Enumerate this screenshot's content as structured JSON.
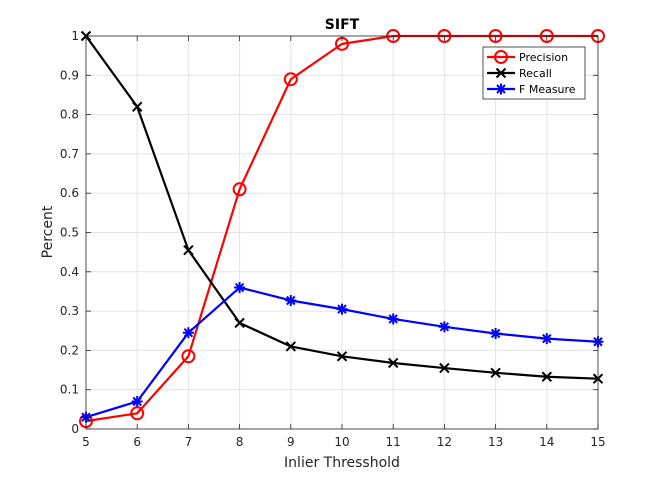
{
  "chart_data": {
    "type": "line",
    "title": "SIFT",
    "xlabel": "Inlier Thresshold",
    "ylabel": "Percent",
    "x": [
      5,
      6,
      7,
      8,
      9,
      10,
      11,
      12,
      13,
      14,
      15
    ],
    "xlim": [
      5,
      15
    ],
    "ylim": [
      0,
      1
    ],
    "xticks": [
      5,
      6,
      7,
      8,
      9,
      10,
      11,
      12,
      13,
      14,
      15
    ],
    "yticks": [
      0,
      0.1,
      0.2,
      0.3,
      0.4,
      0.5,
      0.6,
      0.7,
      0.8,
      0.9,
      1
    ],
    "grid": true,
    "legend_position": "top-right",
    "series": [
      {
        "name": "Precision",
        "color": "#ff0000",
        "marker": "circle",
        "values": [
          0.02,
          0.04,
          0.185,
          0.61,
          0.89,
          0.98,
          1.0,
          1.0,
          1.0,
          1.0,
          1.0
        ]
      },
      {
        "name": "Recall",
        "color": "#000000",
        "marker": "x",
        "values": [
          1.0,
          0.82,
          0.455,
          0.27,
          0.21,
          0.185,
          0.168,
          0.155,
          0.143,
          0.133,
          0.128
        ]
      },
      {
        "name": "F Measure",
        "color": "#0000ff",
        "marker": "star",
        "values": [
          0.03,
          0.07,
          0.245,
          0.36,
          0.327,
          0.305,
          0.28,
          0.26,
          0.243,
          0.23,
          0.222
        ]
      }
    ]
  }
}
